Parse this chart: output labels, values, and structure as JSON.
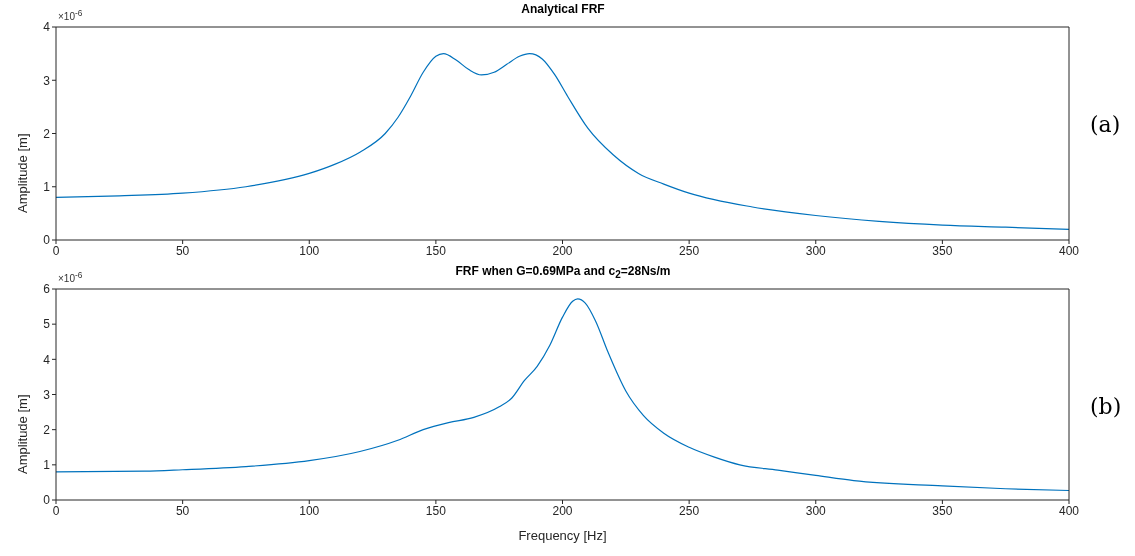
{
  "chart_data": [
    {
      "type": "line",
      "title": "Analytical FRF",
      "ylabel": "Amplitude [m]",
      "xlim": [
        0,
        400
      ],
      "xticks": [
        0,
        50,
        100,
        150,
        200,
        250,
        300,
        350,
        400
      ],
      "ylim": [
        0,
        4
      ],
      "yticks": [
        0,
        1,
        2,
        3,
        4
      ],
      "annotations": [
        "×10$^{-6}$",
        "(a)"
      ],
      "x": [
        0,
        25,
        50,
        75,
        100,
        110,
        120,
        130,
        135,
        140,
        145,
        150,
        153,
        158,
        163,
        168,
        173,
        178,
        183,
        187,
        192,
        197,
        202,
        210,
        220,
        230,
        240,
        250,
        275,
        300,
        325,
        350,
        375,
        400
      ],
      "series": [
        {
          "color": "#0072bd",
          "values": [
            0.8,
            0.83,
            0.88,
            1.0,
            1.25,
            1.42,
            1.65,
            2.0,
            2.3,
            2.7,
            3.15,
            3.45,
            3.5,
            3.38,
            3.2,
            3.1,
            3.15,
            3.3,
            3.45,
            3.5,
            3.4,
            3.1,
            2.7,
            2.1,
            1.6,
            1.25,
            1.05,
            0.88,
            0.62,
            0.46,
            0.35,
            0.28,
            0.24,
            0.2
          ]
        }
      ]
    },
    {
      "type": "line",
      "title": "FRF when G=0.69MPa and c$_{2}$=28Ns/m",
      "ylabel": "Amplitude [m]",
      "xlabel": "Frequency [Hz]",
      "xlim": [
        0,
        400
      ],
      "xticks": [
        0,
        50,
        100,
        150,
        200,
        250,
        300,
        350,
        400
      ],
      "ylim": [
        0,
        6
      ],
      "yticks": [
        0,
        1,
        2,
        3,
        4,
        5,
        6
      ],
      "annotations": [
        "×10$^{-6}$",
        "(b)"
      ],
      "x": [
        0,
        35,
        50,
        75,
        100,
        120,
        135,
        145,
        155,
        165,
        175,
        180,
        185,
        190,
        195,
        200,
        204,
        206,
        209,
        213,
        218,
        225,
        232,
        240,
        250,
        260,
        270,
        285,
        300,
        315,
        350,
        375,
        400
      ],
      "series": [
        {
          "color": "#0072bd",
          "values": [
            0.8,
            0.82,
            0.86,
            0.95,
            1.12,
            1.38,
            1.7,
            2.0,
            2.2,
            2.35,
            2.65,
            2.9,
            3.4,
            3.8,
            4.4,
            5.2,
            5.65,
            5.72,
            5.6,
            5.1,
            4.2,
            3.1,
            2.4,
            1.9,
            1.5,
            1.22,
            1.0,
            0.85,
            0.7,
            0.55,
            0.4,
            0.32,
            0.27
          ]
        }
      ]
    }
  ]
}
